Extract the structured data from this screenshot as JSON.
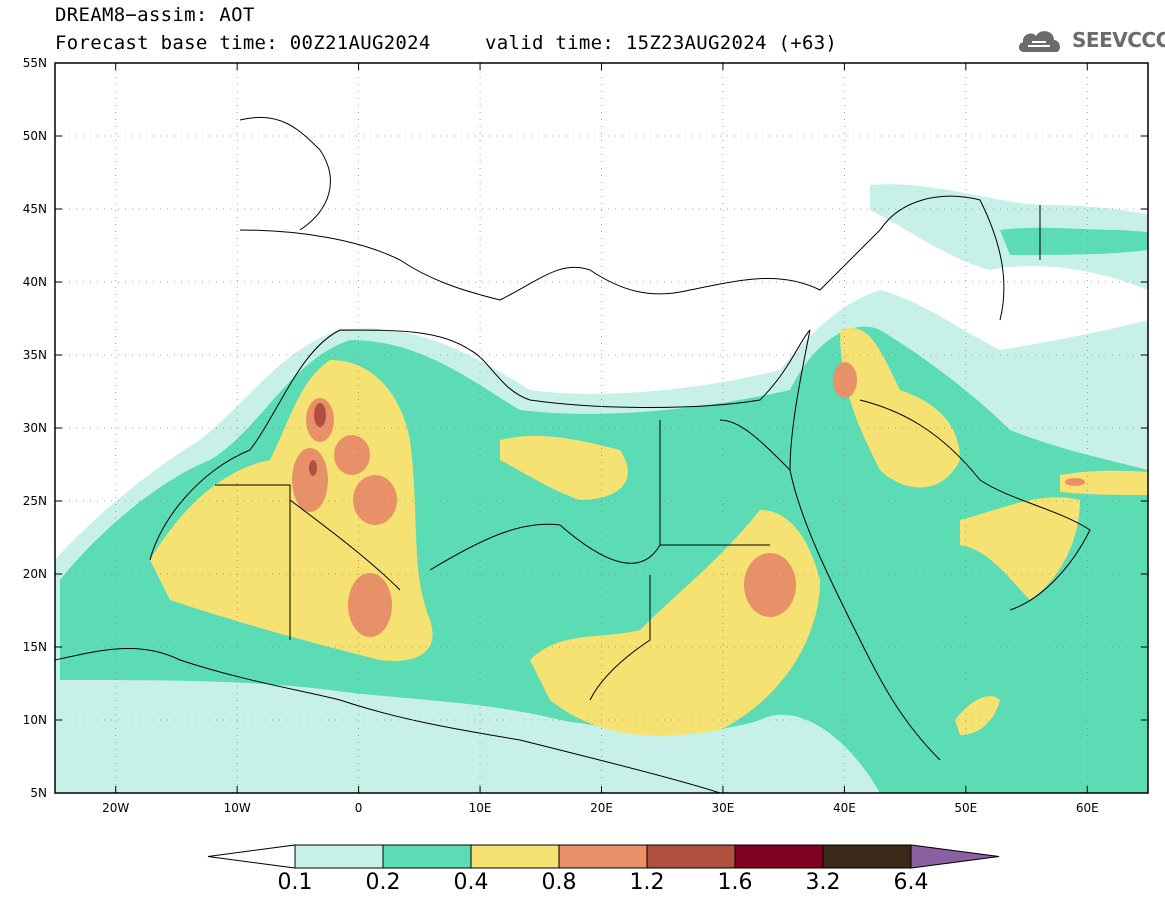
{
  "title": {
    "line1": "DREAM8−assim: AOT",
    "base_time": "Forecast base time: 00Z21AUG2024",
    "valid_time": "valid time: 15Z23AUG2024 (+63)"
  },
  "logo": {
    "text": "SEEVCCC",
    "icon": "cloud-icon"
  },
  "map": {
    "lon_range": [
      -25,
      65
    ],
    "lat_range": [
      5,
      55
    ],
    "lon_ticks": [
      {
        "value": -20,
        "label": "20W"
      },
      {
        "value": -10,
        "label": "10W"
      },
      {
        "value": 0,
        "label": "0"
      },
      {
        "value": 10,
        "label": "10E"
      },
      {
        "value": 20,
        "label": "20E"
      },
      {
        "value": 30,
        "label": "30E"
      },
      {
        "value": 40,
        "label": "40E"
      },
      {
        "value": 50,
        "label": "50E"
      },
      {
        "value": 60,
        "label": "60E"
      }
    ],
    "lat_ticks": [
      {
        "value": 55,
        "label": "55N"
      },
      {
        "value": 50,
        "label": "50N"
      },
      {
        "value": 45,
        "label": "45N"
      },
      {
        "value": 40,
        "label": "40N"
      },
      {
        "value": 35,
        "label": "35N"
      },
      {
        "value": 30,
        "label": "30N"
      },
      {
        "value": 25,
        "label": "25N"
      },
      {
        "value": 20,
        "label": "20N"
      },
      {
        "value": 15,
        "label": "15N"
      },
      {
        "value": 10,
        "label": "10N"
      },
      {
        "value": 5,
        "label": "5N"
      }
    ],
    "grid": "dotted"
  },
  "colorbar": {
    "labels": [
      "0.1",
      "0.2",
      "0.4",
      "0.8",
      "1.2",
      "1.6",
      "3.2",
      "6.4"
    ],
    "colors": [
      "#c7f0e8",
      "#5cdcb4",
      "#f5e272",
      "#e89068",
      "#b05040",
      "#800020",
      "#3a2818",
      "#8a60a0"
    ],
    "under_color": "#ffffff"
  }
}
